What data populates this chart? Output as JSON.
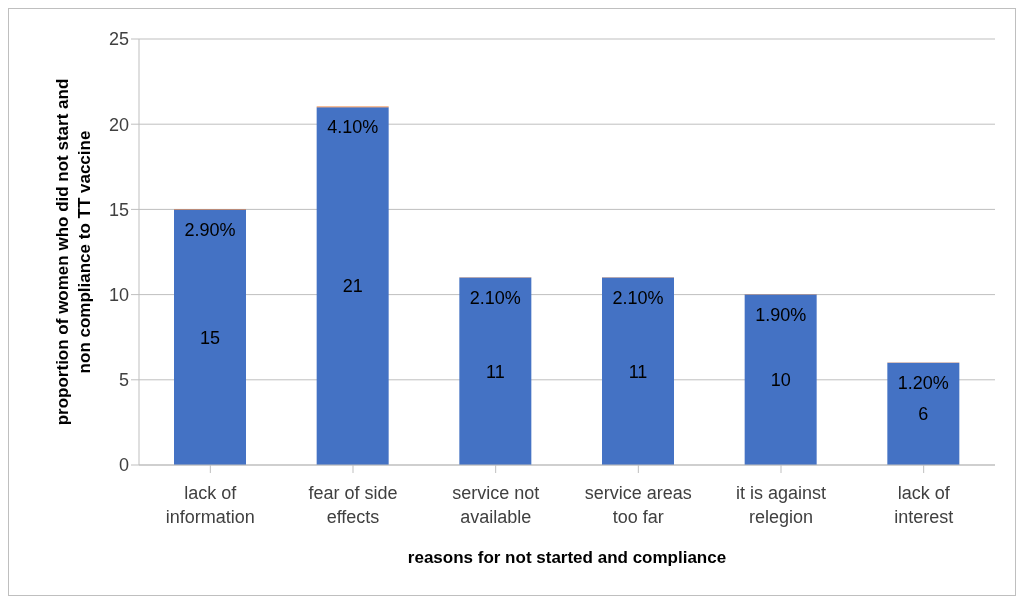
{
  "chart_data": {
    "type": "bar",
    "stacked": true,
    "xlabel": "reasons for not started and compliance",
    "ylabel": "proportion of women who did not start and non compliance to TT vaccine",
    "categories": [
      "lack of information",
      "fear of side effects",
      "service not available",
      "service areas too far",
      "it is against relegion",
      "lack of interest"
    ],
    "series": [
      {
        "color": "#4472c4",
        "values": [
          15,
          21,
          11,
          11,
          10,
          6
        ],
        "value_labels": [
          "15",
          "21",
          "11",
          "11",
          "10",
          "6"
        ]
      },
      {
        "color": "#ed7d31",
        "values": [
          0.029,
          0.041,
          0.021,
          0.021,
          0.019,
          0.012
        ],
        "value_labels": [
          "2.90%",
          "4.10%",
          "2.10%",
          "2.10%",
          "1.90%",
          "1.20%"
        ]
      }
    ],
    "ylim": [
      0,
      25
    ],
    "yticks": [
      0,
      5,
      10,
      15,
      20,
      25
    ],
    "grid": "y",
    "legend": false
  }
}
